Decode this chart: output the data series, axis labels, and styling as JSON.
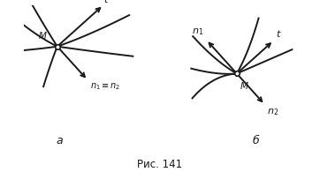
{
  "fig_width": 3.62,
  "fig_height": 1.95,
  "dpi": 100,
  "bg_color": "#ffffff",
  "line_color": "#1a1a1a",
  "lw": 1.4,
  "label_a": "а",
  "label_b": "б",
  "caption": "Рис. 141",
  "point_color": "white",
  "point_edge_color": "#1a1a1a",
  "point_size": 4
}
